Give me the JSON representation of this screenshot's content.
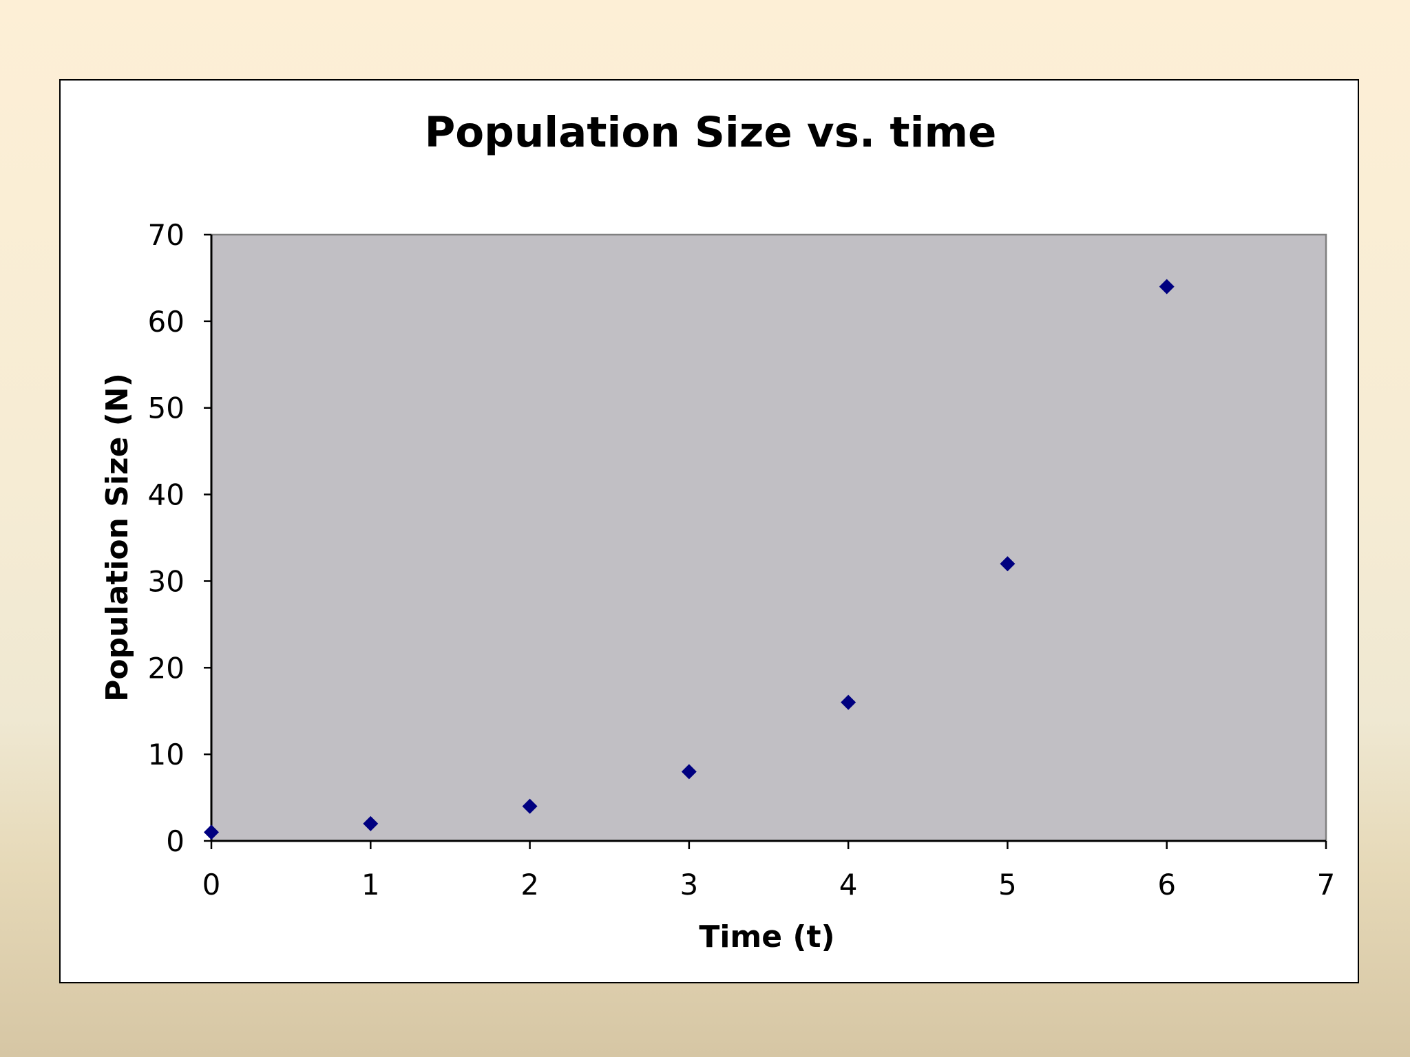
{
  "chart_data": {
    "type": "scatter",
    "title": "Population Size vs. time",
    "xlabel": "Time (t)",
    "ylabel": "Population Size (N)",
    "xlim": [
      0,
      7
    ],
    "ylim": [
      0,
      70
    ],
    "x_ticks": [
      0,
      1,
      2,
      3,
      4,
      5,
      6,
      7
    ],
    "y_ticks": [
      0,
      10,
      20,
      30,
      40,
      50,
      60,
      70
    ],
    "grid": false,
    "legend": false,
    "marker": "diamond",
    "colors": {
      "plot_background": "#c1bfc4",
      "marker": "#000080",
      "plot_border": "#808080"
    },
    "series": [
      {
        "x": [
          0,
          1,
          2,
          3,
          4,
          5,
          6
        ],
        "y": [
          1,
          2,
          4,
          8,
          16,
          32,
          64
        ]
      }
    ]
  }
}
